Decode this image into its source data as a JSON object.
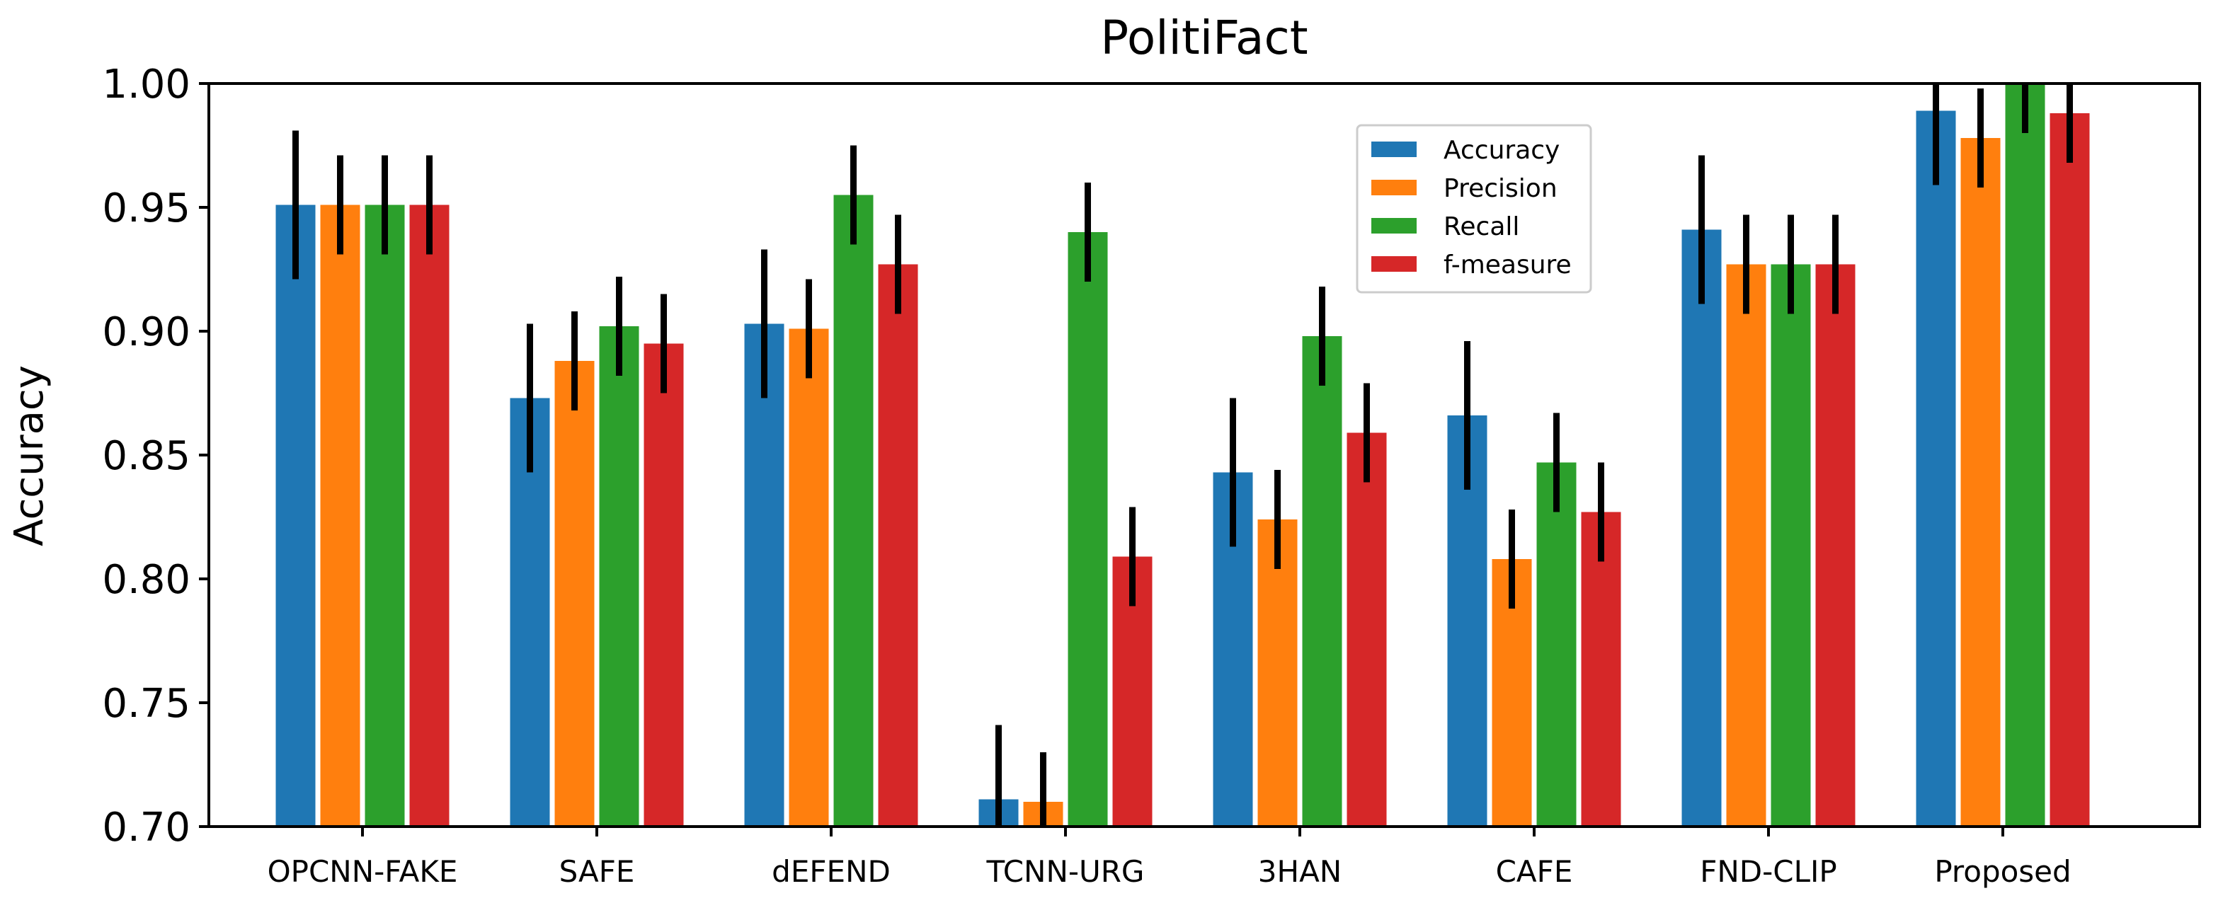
{
  "chart_data": {
    "type": "bar",
    "title": "PolitiFact",
    "xlabel": "",
    "ylabel": "Accuracy",
    "ylim": [
      0.7,
      1.0
    ],
    "yticks": [
      "0.70",
      "0.75",
      "0.80",
      "0.85",
      "0.90",
      "0.95",
      "1.00"
    ],
    "categories": [
      "OPCNN-FAKE",
      "SAFE",
      "dEFEND",
      "TCNN-URG",
      "3HAN",
      "CAFE",
      "FND-CLIP",
      "Proposed"
    ],
    "series": [
      {
        "name": "Accuracy",
        "color": "#1f77b4",
        "values": [
          0.951,
          0.873,
          0.903,
          0.711,
          0.843,
          0.866,
          0.941,
          0.989
        ],
        "errors": [
          0.03,
          0.03,
          0.03,
          0.03,
          0.03,
          0.03,
          0.03,
          0.03
        ]
      },
      {
        "name": "Precision",
        "color": "#ff7f0e",
        "values": [
          0.951,
          0.888,
          0.901,
          0.71,
          0.824,
          0.808,
          0.927,
          0.978
        ],
        "errors": [
          0.02,
          0.02,
          0.02,
          0.02,
          0.02,
          0.02,
          0.02,
          0.02
        ]
      },
      {
        "name": "Recall",
        "color": "#2ca02c",
        "values": [
          0.951,
          0.902,
          0.955,
          0.94,
          0.898,
          0.847,
          0.927,
          1.0
        ],
        "errors": [
          0.02,
          0.02,
          0.02,
          0.02,
          0.02,
          0.02,
          0.02,
          0.02
        ]
      },
      {
        "name": "f-measure",
        "color": "#d62728",
        "values": [
          0.951,
          0.895,
          0.927,
          0.809,
          0.859,
          0.827,
          0.927,
          0.988
        ],
        "errors": [
          0.02,
          0.02,
          0.02,
          0.02,
          0.02,
          0.02,
          0.02,
          0.02
        ]
      }
    ],
    "legend_position": "upper-center",
    "grid": false
  }
}
